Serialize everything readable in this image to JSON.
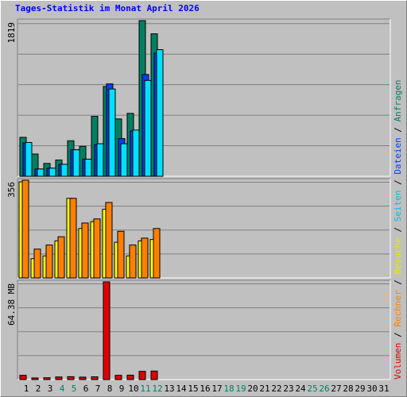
{
  "title": "Tages-Statistik im Monat April 2026",
  "chart_data": [
    {
      "type": "bar",
      "panel": "requests",
      "ylabel_max": "1819",
      "ylim": [
        0,
        1819
      ],
      "categories": [
        "1",
        "2",
        "3",
        "4",
        "5",
        "6",
        "7",
        "8",
        "9",
        "10",
        "11",
        "12",
        "13",
        "14",
        "15",
        "16",
        "17",
        "18",
        "19",
        "20",
        "21",
        "22",
        "23",
        "24",
        "25",
        "26",
        "27",
        "28",
        "29",
        "30",
        "31"
      ],
      "series": [
        {
          "name": "Anfragen",
          "color": "#008060",
          "values": [
            455,
            260,
            150,
            190,
            415,
            350,
            700,
            1050,
            670,
            735,
            1819,
            1665,
            0,
            0,
            0,
            0,
            0,
            0,
            0,
            0,
            0,
            0,
            0,
            0,
            0,
            0,
            0,
            0,
            0,
            0,
            0
          ]
        },
        {
          "name": "Dateien",
          "color": "#0040ff",
          "values": [
            390,
            85,
            95,
            140,
            310,
            200,
            370,
            1080,
            440,
            530,
            1190,
            1440,
            0,
            0,
            0,
            0,
            0,
            0,
            0,
            0,
            0,
            0,
            0,
            0,
            0,
            0,
            0,
            0,
            0,
            0,
            0
          ]
        },
        {
          "name": "Seiten",
          "color": "#00e0ff",
          "values": [
            395,
            85,
            95,
            140,
            310,
            200,
            380,
            1020,
            380,
            540,
            1120,
            1480,
            0,
            0,
            0,
            0,
            0,
            0,
            0,
            0,
            0,
            0,
            0,
            0,
            0,
            0,
            0,
            0,
            0,
            0,
            0
          ]
        }
      ]
    },
    {
      "type": "bar",
      "panel": "visits",
      "ylabel_max": "356",
      "ylim": [
        0,
        356
      ],
      "categories": [
        "1",
        "2",
        "3",
        "4",
        "5",
        "6",
        "7",
        "8",
        "9",
        "10",
        "11",
        "12",
        "13",
        "14",
        "15",
        "16",
        "17",
        "18",
        "19",
        "20",
        "21",
        "22",
        "23",
        "24",
        "25",
        "26",
        "27",
        "28",
        "29",
        "30",
        "31"
      ],
      "series": [
        {
          "name": "Besuche",
          "color": "#ffff00",
          "values": [
            350,
            70,
            80,
            135,
            290,
            180,
            205,
            250,
            130,
            80,
            135,
            140,
            0,
            0,
            0,
            0,
            0,
            0,
            0,
            0,
            0,
            0,
            0,
            0,
            0,
            0,
            0,
            0,
            0,
            0,
            0
          ]
        },
        {
          "name": "Rechner",
          "color": "#ff8000",
          "values": [
            356,
            105,
            120,
            150,
            290,
            200,
            215,
            275,
            170,
            120,
            145,
            180,
            0,
            0,
            0,
            0,
            0,
            0,
            0,
            0,
            0,
            0,
            0,
            0,
            0,
            0,
            0,
            0,
            0,
            0,
            0
          ]
        }
      ]
    },
    {
      "type": "bar",
      "panel": "volume",
      "ylabel_max": "64.38 MB",
      "ylim": [
        0,
        64.38
      ],
      "categories": [
        "1",
        "2",
        "3",
        "4",
        "5",
        "6",
        "7",
        "8",
        "9",
        "10",
        "11",
        "12",
        "13",
        "14",
        "15",
        "16",
        "17",
        "18",
        "19",
        "20",
        "21",
        "22",
        "23",
        "24",
        "25",
        "26",
        "27",
        "28",
        "29",
        "30",
        "31"
      ],
      "series": [
        {
          "name": "Volumen",
          "color": "#e00000",
          "values": [
            2.8,
            1.0,
            1.2,
            1.7,
            1.9,
            1.6,
            1.8,
            64.38,
            2.8,
            2.9,
            5.4,
            5.6,
            0,
            0,
            0,
            0,
            0,
            0,
            0,
            0,
            0,
            0,
            0,
            0,
            0,
            0,
            0,
            0,
            0,
            0,
            0
          ]
        }
      ]
    }
  ],
  "weekend_days": [
    "4",
    "5",
    "11",
    "12",
    "18",
    "19",
    "25",
    "26"
  ],
  "colors": {
    "weekday_label": "#000000",
    "weekend_label": "#00805c",
    "grid": "#808080",
    "plot_bg": "#c0c0c0",
    "title": "#0000ff"
  },
  "legend": {
    "sep": " / ",
    "items": [
      {
        "label": "Volumen",
        "color": "#e00000"
      },
      {
        "label": "Rechner",
        "color": "#ff8000"
      },
      {
        "label": "Besuche",
        "color": "#e8e800"
      },
      {
        "label": "Seiten",
        "color": "#00c0e0"
      },
      {
        "label": "Dateien",
        "color": "#0040ff"
      },
      {
        "label": "Anfragen",
        "color": "#00805c"
      }
    ]
  }
}
